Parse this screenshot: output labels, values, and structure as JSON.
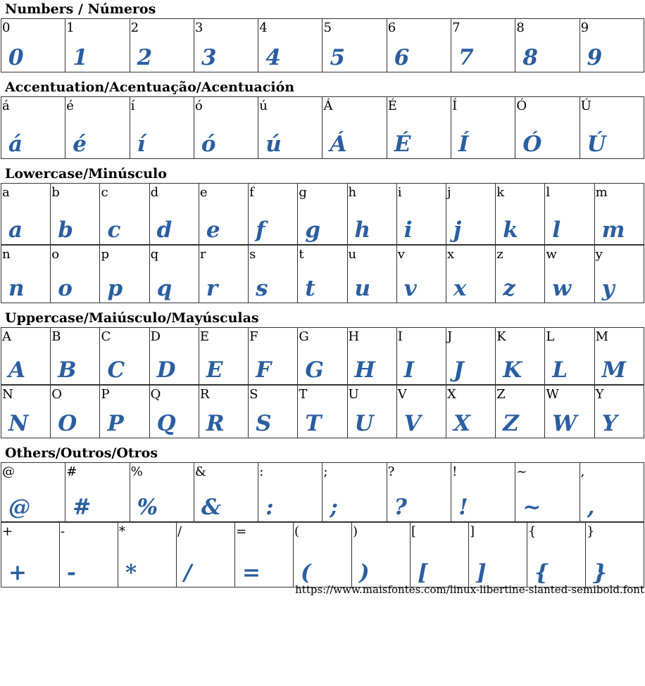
{
  "sample_color": "#2a5ea0",
  "sections": [
    {
      "title": "Numbers / Números",
      "rows": [
        [
          "0",
          "1",
          "2",
          "3",
          "4",
          "5",
          "6",
          "7",
          "8",
          "9"
        ]
      ]
    },
    {
      "title": "Accentuation/Acentuação/Acentuación",
      "rows": [
        [
          "á",
          "é",
          "í",
          "ó",
          "ú",
          "Á",
          "É",
          "Í",
          "Ó",
          "Ú"
        ]
      ]
    },
    {
      "title": "Lowercase/Minúsculo",
      "rows": [
        [
          "a",
          "b",
          "c",
          "d",
          "e",
          "f",
          "g",
          "h",
          "i",
          "j",
          "k",
          "l",
          "m"
        ],
        [
          "n",
          "o",
          "p",
          "q",
          "r",
          "s",
          "t",
          "u",
          "v",
          "x",
          "z",
          "w",
          "y"
        ]
      ]
    },
    {
      "title": "Uppercase/Maiúsculo/Mayúsculas",
      "rows": [
        [
          "A",
          "B",
          "C",
          "D",
          "E",
          "F",
          "G",
          "H",
          "I",
          "J",
          "K",
          "L",
          "M"
        ],
        [
          "N",
          "O",
          "P",
          "Q",
          "R",
          "S",
          "T",
          "U",
          "V",
          "X",
          "Z",
          "W",
          "Y"
        ]
      ]
    },
    {
      "title": "Others/Outros/Otros",
      "rows": [
        [
          "@",
          "#",
          "%",
          "&",
          ":",
          ";",
          "?",
          "!",
          "~",
          ","
        ],
        [
          "+",
          "-",
          "*",
          "/",
          "=",
          "(",
          ")",
          "[",
          "]",
          "{",
          "}"
        ]
      ]
    }
  ],
  "footer_url": "https://www.maisfontes.com/linux-libertine-slanted-semibold.font"
}
